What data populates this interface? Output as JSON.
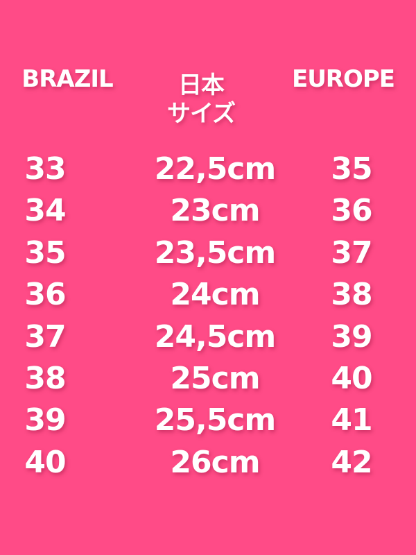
{
  "background_color": "#FF4B87",
  "headers": {
    "brazil": "BRAZIL",
    "japan_line1": "日本",
    "japan_line2": "サイズ",
    "europe": "EUROPE"
  },
  "rows": [
    {
      "brazil": "33",
      "japan": "22,5cm",
      "europe": "35"
    },
    {
      "brazil": "34",
      "japan": "23cm",
      "europe": "36"
    },
    {
      "brazil": "35",
      "japan": "23,5cm",
      "europe": "37"
    },
    {
      "brazil": "36",
      "japan": "24cm",
      "europe": "38"
    },
    {
      "brazil": "37",
      "japan": "24,5cm",
      "europe": "39"
    },
    {
      "brazil": "38",
      "japan": "25cm",
      "europe": "40"
    },
    {
      "brazil": "39",
      "japan": "25,5cm",
      "europe": "41"
    },
    {
      "brazil": "40",
      "japan": "26cm",
      "europe": "42"
    }
  ]
}
